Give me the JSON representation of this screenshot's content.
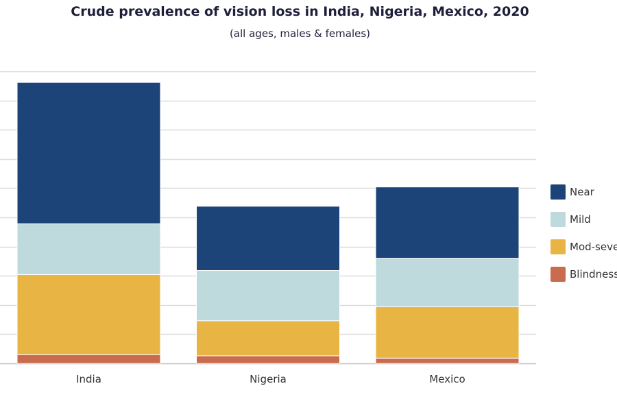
{
  "chart_data": {
    "type": "bar",
    "stacked": true,
    "title": "Crude prevalence of vision loss in India, Nigeria, Mexico, 2020",
    "subtitle": "(all ages, males & females)",
    "categories": [
      "India",
      "Nigeria",
      "Mexico"
    ],
    "ylim": [
      0,
      50
    ],
    "grid": true,
    "legend_position": "right",
    "series": [
      {
        "name": "Blindness",
        "color": "#c96b4d",
        "values": [
          1.5,
          1.3,
          0.9
        ]
      },
      {
        "name": "Mod-severe",
        "color": "#e8b545",
        "values": [
          13.7,
          6.0,
          8.8
        ]
      },
      {
        "name": "Mild",
        "color": "#bedadd",
        "values": [
          8.7,
          8.6,
          8.3
        ]
      },
      {
        "name": "Near",
        "color": "#1d4478",
        "values": [
          24.2,
          11.0,
          12.2
        ]
      }
    ],
    "legend": [
      {
        "name": "Near",
        "color": "#1d4478"
      },
      {
        "name": "Mild",
        "color": "#bedadd"
      },
      {
        "name": "Mod-severe",
        "color": "#e8b545"
      },
      {
        "name": "Blindness",
        "color": "#c96b4d"
      }
    ]
  }
}
